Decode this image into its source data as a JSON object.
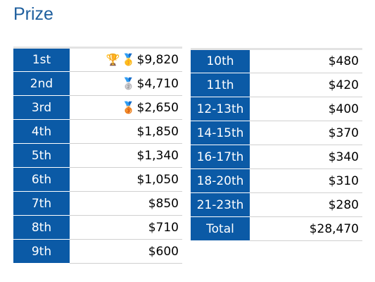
{
  "title": "Prize",
  "left_table": [
    {
      "rank": "1st",
      "medals": [
        "🏆",
        "🥇"
      ],
      "amount": "$9,820"
    },
    {
      "rank": "2nd",
      "medals": [
        "🥈"
      ],
      "amount": "$4,710"
    },
    {
      "rank": "3rd",
      "medals": [
        "🥉"
      ],
      "amount": "$2,650"
    },
    {
      "rank": "4th",
      "medals": [],
      "amount": "$1,850"
    },
    {
      "rank": "5th",
      "medals": [],
      "amount": "$1,340"
    },
    {
      "rank": "6th",
      "medals": [],
      "amount": "$1,050"
    },
    {
      "rank": "7th",
      "medals": [],
      "amount": "$850"
    },
    {
      "rank": "8th",
      "medals": [],
      "amount": "$710"
    },
    {
      "rank": "9th",
      "medals": [],
      "amount": "$600"
    }
  ],
  "right_table": [
    {
      "rank": "10th",
      "amount": "$480"
    },
    {
      "rank": "11th",
      "amount": "$420"
    },
    {
      "rank": "12-13th",
      "amount": "$400"
    },
    {
      "rank": "14-15th",
      "amount": "$370"
    },
    {
      "rank": "16-17th",
      "amount": "$340"
    },
    {
      "rank": "18-20th",
      "amount": "$310"
    },
    {
      "rank": "21-23th",
      "amount": "$280"
    },
    {
      "rank": "Total",
      "amount": "$28,470"
    }
  ],
  "icons": {
    "🏆": "trophy-icon",
    "🥇": "gold-medal-icon",
    "🥈": "silver-medal-icon",
    "🥉": "bronze-medal-icon"
  },
  "colors": {
    "title": "#1f5f9e",
    "rank_background": "#0b5aa6",
    "rank_text": "#ffffff"
  }
}
